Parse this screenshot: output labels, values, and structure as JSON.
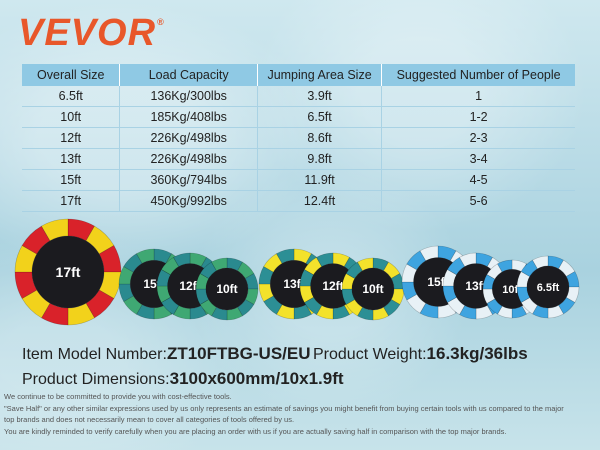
{
  "brand": {
    "name": "VEVOR",
    "mark": "®"
  },
  "table": {
    "headers": [
      "Overall Size",
      "Load Capacity",
      "Jumping Area Size",
      "Suggested Number of People"
    ],
    "rows": [
      [
        "6.5ft",
        "136Kg/300lbs",
        "3.9ft",
        "1"
      ],
      [
        "10ft",
        "185Kg/408lbs",
        "6.5ft",
        "1-2"
      ],
      [
        "12ft",
        "226Kg/498lbs",
        "8.6ft",
        "2-3"
      ],
      [
        "13ft",
        "226Kg/498lbs",
        "9.8ft",
        "3-4"
      ],
      [
        "15ft",
        "360Kg/794lbs",
        "11.9ft",
        "4-5"
      ],
      [
        "17ft",
        "450Kg/992lbs",
        "12.4ft",
        "5-6"
      ]
    ]
  },
  "products": {
    "group1": {
      "labels": [
        "17ft"
      ],
      "colors": [
        "#d9222a",
        "#f2d21b"
      ]
    },
    "group2": {
      "labels": [
        "15ft",
        "12ft",
        "10ft"
      ],
      "colors": [
        "#2a8a8f",
        "#3fa873"
      ]
    },
    "group3": {
      "labels": [
        "13ft",
        "12ft",
        "10ft"
      ],
      "colors": [
        "#f3e22b",
        "#2c8f95"
      ]
    },
    "group4": {
      "labels": [
        "15ft",
        "13ft",
        "10ft",
        "6.5ft"
      ],
      "colors": [
        "#3ea4e0",
        "#e8f1f6"
      ]
    }
  },
  "details": {
    "model_label": "Item Model Number:",
    "model_value": "ZT10FTBG-US/EU",
    "weight_label": "Product Weight:",
    "weight_value": "16.3kg/36lbs",
    "dimensions_label": "Product Dimensions:",
    "dimensions_value": "3100x600mm/10x1.9ft"
  },
  "disclaimer": [
    "We continue to be committed to provide you with cost-effective tools.",
    "\"Save Half\" or any other similar expressions used by us only represents an estimate of savings you might benefit from buying certain tools with us compared to the major",
    "top brands and does not necessarily mean to cover all categories of tools offered by us.",
    "You are kindly reminded to verify carefully when you are placing an order with us if you are actually saving half in comparison with the top major brands."
  ]
}
